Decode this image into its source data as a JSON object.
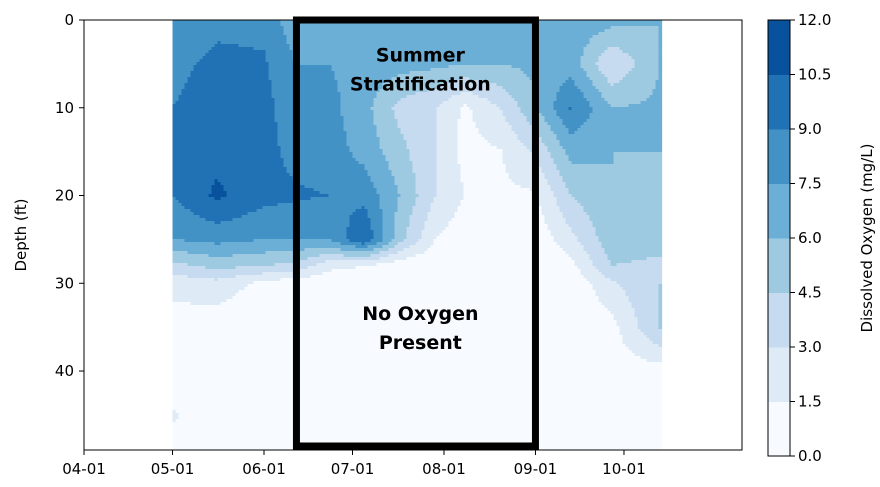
{
  "chart_data": {
    "type": "heatmap",
    "ylabel": "Depth (ft)",
    "y_inverted": true,
    "ylim": [
      0,
      49
    ],
    "xlim": [
      "2019-04-01",
      "2019-11-10"
    ],
    "x_ticks": [
      {
        "date": "2019-04-01",
        "label": "04-01"
      },
      {
        "date": "2019-05-01",
        "label": "05-01"
      },
      {
        "date": "2019-06-01",
        "label": "06-01"
      },
      {
        "date": "2019-07-01",
        "label": "07-01"
      },
      {
        "date": "2019-08-01",
        "label": "08-01"
      },
      {
        "date": "2019-09-01",
        "label": "09-01"
      },
      {
        "date": "2019-10-01",
        "label": "10-01"
      }
    ],
    "y_ticks": [
      0,
      10,
      20,
      30,
      40
    ],
    "colorbar": {
      "label": "Dissolved Oxygen (mg/L)",
      "levels": [
        0.0,
        1.5,
        3.0,
        4.5,
        6.0,
        7.5,
        9.0,
        10.5,
        12.0
      ],
      "tick_labels": [
        "0.0",
        "1.5",
        "3.0",
        "4.5",
        "6.0",
        "7.5",
        "9.0",
        "10.5",
        "12.0"
      ],
      "colors": [
        "#f7fbff",
        "#deebf7",
        "#c6dbef",
        "#9ecae1",
        "#6baed6",
        "#4292c6",
        "#2171b5",
        "#08519c",
        "#08306b"
      ]
    },
    "sample_dates": [
      "2019-05-01",
      "2019-05-16",
      "2019-06-01",
      "2019-06-12",
      "2019-06-23",
      "2019-07-05",
      "2019-07-17",
      "2019-07-29",
      "2019-08-08",
      "2019-08-20",
      "2019-09-01",
      "2019-09-13",
      "2019-09-27",
      "2019-10-13"
    ],
    "depths": [
      0,
      5,
      10,
      15,
      20,
      25,
      28,
      30,
      35,
      40,
      45,
      49
    ],
    "do_values": [
      [
        7.5,
        8.5,
        8.5,
        6.5,
        7.0,
        7.0,
        7.0,
        6.8,
        7.2,
        7.0,
        6.8,
        7.0,
        6.6,
        6.0
      ],
      [
        8.5,
        9.5,
        9.2,
        7.5,
        7.5,
        7.0,
        6.6,
        6.4,
        6.0,
        6.0,
        6.4,
        6.8,
        3.0,
        6.0
      ],
      [
        9.0,
        9.8,
        9.5,
        8.0,
        8.0,
        6.5,
        4.0,
        3.0,
        1.2,
        3.0,
        5.8,
        9.2,
        6.0,
        6.3
      ],
      [
        9.2,
        10.0,
        9.5,
        8.5,
        8.2,
        7.0,
        5.0,
        3.0,
        1.0,
        1.4,
        3.2,
        6.5,
        6.0,
        6.0
      ],
      [
        9.0,
        10.8,
        9.5,
        9.2,
        9.0,
        8.5,
        6.0,
        3.0,
        1.5,
        1.2,
        1.3,
        4.5,
        6.0,
        5.5
      ],
      [
        7.5,
        8.0,
        7.5,
        7.5,
        7.5,
        10.5,
        5.0,
        1.5,
        0.5,
        0.5,
        0.5,
        2.5,
        5.5,
        5.5
      ],
      [
        4.0,
        5.0,
        4.5,
        4.0,
        2.0,
        1.5,
        0.5,
        0.2,
        0.1,
        0.1,
        0.1,
        1.0,
        4.5,
        4.0
      ],
      [
        2.0,
        2.5,
        1.0,
        0.5,
        0.3,
        0.2,
        0.1,
        0.1,
        0.1,
        0.1,
        0.1,
        0.3,
        2.8,
        4.5
      ],
      [
        0.8,
        0.5,
        0.2,
        0.1,
        0.1,
        0.1,
        0.1,
        0.1,
        0.1,
        0.1,
        0.1,
        0.1,
        1.0,
        4.6
      ],
      [
        0.8,
        0.7,
        0.5,
        0.6,
        0.3,
        0.1,
        0.1,
        0.1,
        0.1,
        0.1,
        0.1,
        0.3,
        0.8,
        0.8
      ],
      [
        1.6,
        1.0,
        0.6,
        1.0,
        0.8,
        0.5,
        0.8,
        1.0,
        0.8,
        1.0,
        0.6,
        0.5,
        1.0,
        0.8
      ],
      [
        1.2,
        1.0,
        0.6,
        0.5,
        0.8,
        0.5,
        0.6,
        0.8,
        0.6,
        0.8,
        0.5,
        0.5,
        1.0,
        0.8
      ]
    ],
    "highlight_box": {
      "x_start": "2019-06-12",
      "x_end": "2019-09-01",
      "y_top": 0,
      "y_bottom": 49
    },
    "annotations": [
      {
        "lines": [
          "Summer",
          "Stratification"
        ],
        "date": "2019-07-24",
        "depth": 5.5
      },
      {
        "lines": [
          "No Oxygen",
          "Present"
        ],
        "date": "2019-07-24",
        "depth": 35
      }
    ]
  }
}
